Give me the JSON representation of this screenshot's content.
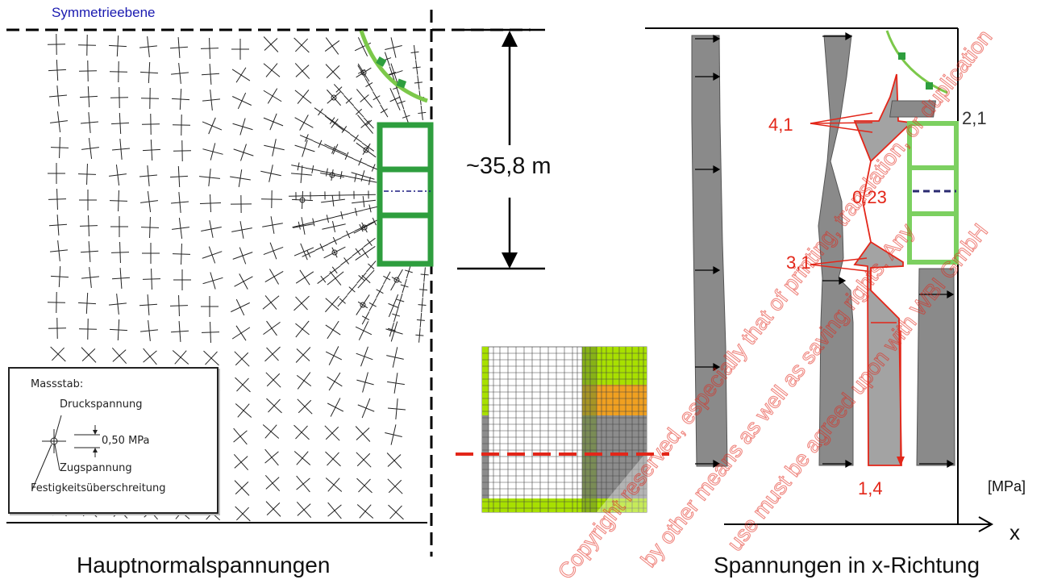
{
  "left_panel": {
    "symmetry_label": "Symmetrieebene",
    "dimension_label": "~35,8 m",
    "caption": "Hauptnormalspannungen",
    "legend": {
      "title": "Massstab:",
      "compression": "Druckspannung",
      "scale_value": "0,50 MPa",
      "tension": "Zugspannung",
      "exceedance": "Festigkeitsüberschreitung"
    }
  },
  "right_panel": {
    "caption": "Spannungen in x-Richtung",
    "unit": "[MPa]",
    "axis_label": "x",
    "values": {
      "v1": "4,1",
      "v2": "2,1",
      "v3": "0,23",
      "v4": "3,1",
      "v5": "1,4"
    }
  },
  "watermark": "Copyright reserved, especially that of printing, translation, or duplication by other means as well as saving rights. Any use must be agreed upon with WBI GmbH",
  "colors": {
    "frame_green": "#2e9e3e",
    "arc_green": "#7cc84a",
    "stress_red": "#e32619",
    "stress_grey": "#8a8a8a",
    "symmetry_blue": "#1a1ab0",
    "mesh_yellow_green": "#a8e000",
    "mesh_orange": "#f0a020"
  }
}
